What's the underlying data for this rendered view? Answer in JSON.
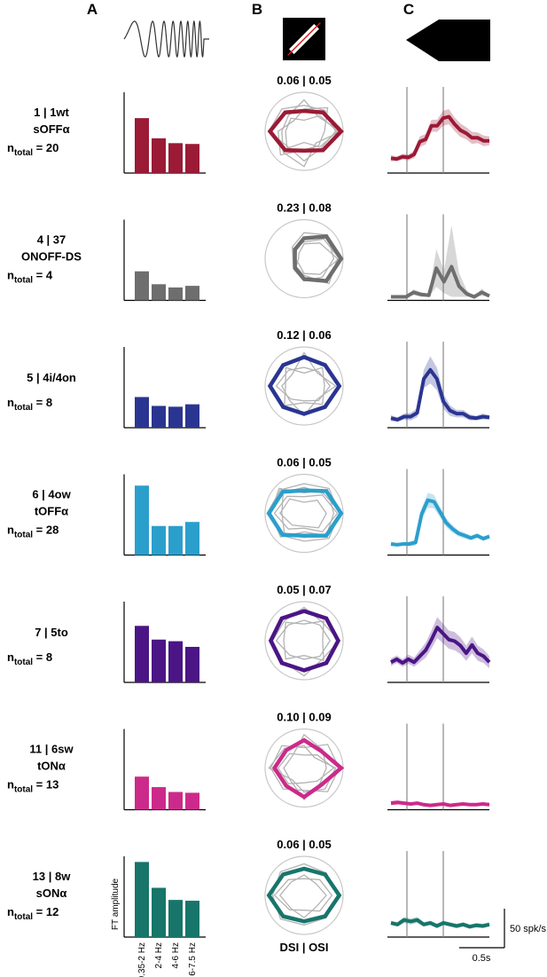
{
  "panel_labels": [
    "A",
    "B",
    "C"
  ],
  "annotations": {
    "b_footer": "DSI | OSI",
    "fr_scale": "50 spk/s",
    "time_scale": "0.5s"
  },
  "rows": [
    {
      "color": "#9b1a35",
      "id_line": "1 | 1wt",
      "type_line": "sOFFα",
      "n_prefix": "n",
      "n_sub": "total",
      "n_value": " = 20",
      "stat_label": "0.06 | 0.05",
      "ft": [
        0.68,
        0.43,
        0.37,
        0.36
      ],
      "polar_main": [
        1.0,
        0.72,
        0.55,
        0.72,
        0.92,
        0.72,
        0.52,
        0.72
      ],
      "polar_grey": [
        [
          0.9,
          0.6,
          0.3,
          0.5,
          0.5,
          0.65,
          0.3,
          0.6
        ],
        [
          0.85,
          0.8,
          0.7,
          0.85,
          0.95,
          0.6,
          0.8,
          0.65
        ],
        [
          0.55,
          0.9,
          0.6,
          0.4,
          0.7,
          0.9,
          0.5,
          0.55
        ],
        [
          1.0,
          0.55,
          0.85,
          0.6,
          0.6,
          0.8,
          0.95,
          0.45
        ]
      ],
      "trace": [
        0.15,
        0.14,
        0.17,
        0.16,
        0.2,
        0.37,
        0.4,
        0.58,
        0.58,
        0.68,
        0.7,
        0.6,
        0.52,
        0.48,
        0.42,
        0.42,
        0.38,
        0.38
      ],
      "trace_err": [
        0.04,
        0.03,
        0.04,
        0.04,
        0.05,
        0.07,
        0.07,
        0.08,
        0.08,
        0.1,
        0.1,
        0.09,
        0.09,
        0.08,
        0.08,
        0.07,
        0.07,
        0.06
      ]
    },
    {
      "color": "#6e6e6e",
      "id_line": "4 | 37",
      "type_line": "ONOFF-DS",
      "n_prefix": "n",
      "n_sub": "total",
      "n_value": " = 4",
      "stat_label": "0.23 | 0.08",
      "ft": [
        0.36,
        0.2,
        0.16,
        0.18
      ],
      "polar_main": [
        1.0,
        0.85,
        0.55,
        0.35,
        0.25,
        0.35,
        0.55,
        0.85
      ],
      "polar_grey": [
        [
          0.8,
          0.9,
          0.7,
          0.45,
          0.3,
          0.4,
          0.6,
          0.7
        ],
        [
          0.9,
          0.6,
          0.4,
          0.2,
          0.15,
          0.3,
          0.45,
          0.95
        ],
        [
          0.95,
          0.75,
          0.45,
          0.4,
          0.25,
          0.2,
          0.4,
          0.6
        ]
      ],
      "trace": [
        0.0,
        0.0,
        0.0,
        0.06,
        0.03,
        0.02,
        0.38,
        0.2,
        0.4,
        0.14,
        0.04,
        0.0,
        0.06,
        0.01
      ],
      "trace_err": [
        0.0,
        0.0,
        0.0,
        0.04,
        0.03,
        0.02,
        0.25,
        0.15,
        0.55,
        0.18,
        0.05,
        0.0,
        0.05,
        0.01
      ]
    },
    {
      "color": "#2a3591",
      "id_line": "5 | 4i/4on",
      "type_line": "",
      "n_prefix": "n",
      "n_sub": "total",
      "n_value": " = 8",
      "stat_label": "0.12 | 0.06",
      "ft": [
        0.38,
        0.27,
        0.26,
        0.29
      ],
      "polar_main": [
        0.95,
        0.8,
        0.78,
        0.8,
        0.92,
        0.8,
        0.75,
        0.8
      ],
      "polar_grey": [
        [
          0.7,
          0.55,
          0.5,
          0.6,
          0.75,
          0.5,
          0.4,
          0.55
        ],
        [
          0.85,
          0.5,
          0.9,
          0.45,
          0.6,
          0.55,
          0.8,
          0.5
        ],
        [
          0.55,
          0.7,
          0.35,
          0.7,
          0.5,
          0.75,
          0.45,
          0.7
        ]
      ],
      "trace": [
        0.08,
        0.06,
        0.1,
        0.1,
        0.15,
        0.6,
        0.72,
        0.6,
        0.3,
        0.18,
        0.14,
        0.14,
        0.09,
        0.08,
        0.1,
        0.09
      ],
      "trace_err": [
        0.04,
        0.03,
        0.04,
        0.05,
        0.06,
        0.12,
        0.18,
        0.15,
        0.1,
        0.07,
        0.05,
        0.05,
        0.04,
        0.03,
        0.04,
        0.03
      ]
    },
    {
      "color": "#2b9fcc",
      "id_line": "6 | 4ow",
      "type_line": "tOFFα",
      "n_prefix": "n",
      "n_sub": "total",
      "n_value": " = 28",
      "stat_label": "0.06 | 0.05",
      "ft": [
        0.86,
        0.36,
        0.36,
        0.41
      ],
      "polar_main": [
        1.0,
        0.85,
        0.62,
        0.82,
        0.95,
        0.82,
        0.6,
        0.85
      ],
      "polar_grey": [
        [
          0.9,
          0.7,
          0.45,
          0.65,
          0.8,
          0.6,
          0.4,
          0.7
        ],
        [
          0.95,
          0.95,
          0.8,
          0.9,
          1.0,
          0.85,
          0.75,
          0.95
        ],
        [
          0.6,
          0.5,
          0.3,
          0.55,
          0.65,
          0.45,
          0.35,
          0.55
        ],
        [
          1.0,
          0.75,
          0.7,
          0.8,
          0.6,
          0.75,
          0.65,
          0.8
        ],
        [
          0.8,
          0.9,
          0.55,
          0.95,
          0.9,
          0.9,
          0.5,
          0.85
        ]
      ],
      "trace": [
        0.1,
        0.09,
        0.1,
        0.1,
        0.12,
        0.5,
        0.68,
        0.66,
        0.52,
        0.38,
        0.3,
        0.24,
        0.21,
        0.18,
        0.21,
        0.17,
        0.2
      ],
      "trace_err": [
        0.03,
        0.02,
        0.02,
        0.03,
        0.04,
        0.08,
        0.1,
        0.09,
        0.07,
        0.06,
        0.05,
        0.04,
        0.04,
        0.03,
        0.03,
        0.03,
        0.03
      ]
    },
    {
      "color": "#4b1585",
      "id_line": "7 | 5to",
      "type_line": "",
      "n_prefix": "n",
      "n_sub": "total",
      "n_value": " = 8",
      "stat_label": "0.05 | 0.07",
      "ft": [
        0.7,
        0.53,
        0.51,
        0.44
      ],
      "polar_main": [
        0.92,
        0.85,
        0.8,
        0.85,
        0.9,
        0.85,
        0.8,
        0.85
      ],
      "polar_grey": [
        [
          0.7,
          0.6,
          0.55,
          0.6,
          0.75,
          0.55,
          0.5,
          0.6
        ],
        [
          0.95,
          0.7,
          0.9,
          0.75,
          0.85,
          0.8,
          0.95,
          0.7
        ],
        [
          0.5,
          0.75,
          0.45,
          0.7,
          0.55,
          0.7,
          0.4,
          0.75
        ]
      ],
      "trace": [
        0.22,
        0.26,
        0.21,
        0.26,
        0.22,
        0.3,
        0.38,
        0.52,
        0.68,
        0.6,
        0.52,
        0.5,
        0.44,
        0.34,
        0.45,
        0.34,
        0.3,
        0.22
      ],
      "trace_err": [
        0.05,
        0.05,
        0.05,
        0.06,
        0.06,
        0.08,
        0.1,
        0.12,
        0.14,
        0.13,
        0.12,
        0.12,
        0.11,
        0.1,
        0.11,
        0.1,
        0.09,
        0.08
      ]
    },
    {
      "color": "#cc2a8a",
      "id_line": "11 | 6sw",
      "type_line": "tONα",
      "n_prefix": "n",
      "n_sub": "total",
      "n_value": " = 13",
      "stat_label": "0.10 | 0.09",
      "ft": [
        0.41,
        0.28,
        0.22,
        0.21
      ],
      "polar_main": [
        1.0,
        0.65,
        0.75,
        0.68,
        0.8,
        0.68,
        0.78,
        0.65
      ],
      "polar_grey": [
        [
          0.8,
          0.5,
          0.35,
          0.55,
          0.7,
          0.6,
          0.4,
          0.5
        ],
        [
          0.95,
          0.9,
          0.55,
          0.85,
          0.9,
          0.8,
          0.6,
          0.9
        ],
        [
          0.6,
          0.7,
          0.9,
          0.45,
          0.55,
          0.5,
          0.85,
          0.6
        ],
        [
          0.85,
          0.4,
          0.6,
          0.75,
          0.95,
          0.45,
          0.65,
          0.8
        ]
      ],
      "trace": [
        0.04,
        0.05,
        0.04,
        0.03,
        0.04,
        0.02,
        0.01,
        0.02,
        0.03,
        0.01,
        0.02,
        0.03,
        0.02,
        0.02,
        0.03,
        0.02
      ],
      "trace_err": [
        0.03,
        0.03,
        0.02,
        0.02,
        0.02,
        0.02,
        0.02,
        0.02,
        0.02,
        0.02,
        0.02,
        0.02,
        0.02,
        0.02,
        0.02,
        0.02
      ]
    },
    {
      "color": "#17756a",
      "id_line": "13 | 8w",
      "type_line": "sONα",
      "n_prefix": "n",
      "n_sub": "total",
      "n_value": " = 12",
      "stat_label": "0.06 | 0.05",
      "ft": [
        0.93,
        0.61,
        0.46,
        0.45
      ],
      "polar_main": [
        0.95,
        0.8,
        0.72,
        0.8,
        0.95,
        0.8,
        0.7,
        0.8
      ],
      "polar_grey": [
        [
          0.75,
          0.6,
          0.45,
          0.6,
          0.8,
          0.55,
          0.4,
          0.6
        ],
        [
          0.9,
          0.85,
          0.85,
          0.9,
          0.85,
          0.9,
          0.8,
          0.85
        ],
        [
          0.6,
          0.45,
          0.55,
          0.5,
          0.65,
          0.5,
          0.6,
          0.45
        ]
      ],
      "trace": [
        0.14,
        0.12,
        0.18,
        0.16,
        0.18,
        0.12,
        0.14,
        0.1,
        0.14,
        0.12,
        0.1,
        0.12,
        0.09,
        0.11,
        0.1,
        0.12
      ],
      "trace_err": [
        0.03,
        0.03,
        0.04,
        0.04,
        0.04,
        0.03,
        0.03,
        0.03,
        0.03,
        0.03,
        0.03,
        0.03,
        0.03,
        0.03,
        0.03,
        0.03
      ]
    }
  ],
  "chart_data": {
    "type": "bar",
    "ylabel": "FT amplitude",
    "categories": [
      "0.35-2 Hz",
      "2-4 Hz",
      "4-6 Hz",
      "6-7.5 Hz"
    ],
    "series": [
      {
        "values": [
          0.68,
          0.43,
          0.37,
          0.36
        ]
      },
      {
        "values": [
          0.36,
          0.2,
          0.16,
          0.18
        ]
      },
      {
        "values": [
          0.38,
          0.27,
          0.26,
          0.29
        ]
      },
      {
        "values": [
          0.86,
          0.36,
          0.36,
          0.41
        ]
      },
      {
        "values": [
          0.7,
          0.53,
          0.51,
          0.44
        ]
      },
      {
        "values": [
          0.41,
          0.28,
          0.22,
          0.21
        ]
      },
      {
        "values": [
          0.93,
          0.61,
          0.46,
          0.45
        ]
      }
    ]
  }
}
